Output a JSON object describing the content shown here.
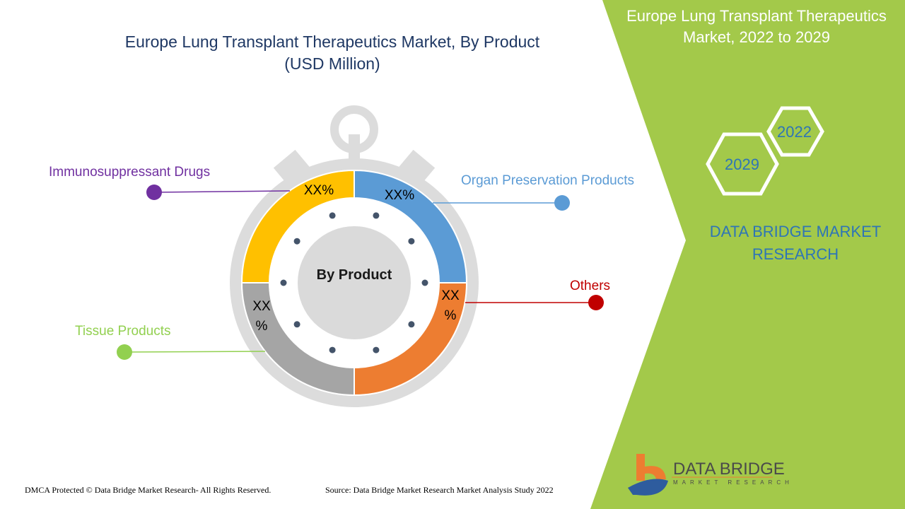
{
  "chart_data": {
    "type": "pie",
    "title": "Europe Lung Transplant Therapeutics Market, By Product",
    "subtitle": "(USD Million)",
    "center_label": "By Product",
    "categories": [
      "Organ Preservation Products",
      "Others",
      "Tissue Products",
      "Immunosuppressant Drugs"
    ],
    "values": [
      25,
      25,
      25,
      25
    ],
    "value_labels": [
      "XX%",
      "XX\n%",
      "XX\n%",
      "XX%"
    ],
    "colors": [
      "#5b9bd5",
      "#ed7d31",
      "#a5a5a5",
      "#ffc000"
    ],
    "legend_colors": [
      "#5b9bd5",
      "#c00000",
      "#92d050",
      "#7030a0"
    ]
  },
  "side_panel": {
    "title": "Europe Lung Transplant Therapeutics Market, 2022 to 2029",
    "year_start": "2022",
    "year_end": "2029",
    "brand": "DATA BRIDGE MARKET RESEARCH",
    "panel_color": "#a3c94a"
  },
  "logo": {
    "main": "DATA BRIDGE",
    "sub": "MARKET RESEARCH"
  },
  "footer": {
    "copyright": "DMCA Protected © Data Bridge Market Research- All Rights Reserved.",
    "source": "Source: Data Bridge Market Research Market Analysis Study 2022"
  }
}
